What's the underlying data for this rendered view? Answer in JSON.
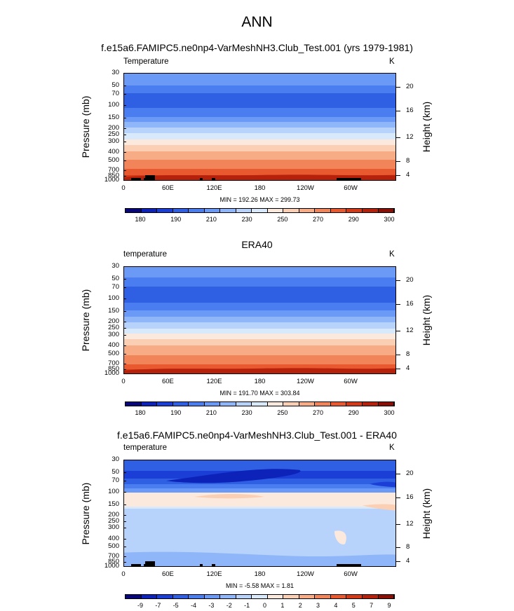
{
  "page_title": "ANN",
  "colorbar_colors": [
    "#08077a",
    "#0d22b8",
    "#1b3fd6",
    "#2f5fe3",
    "#4a7ef0",
    "#6a9af6",
    "#8fb6f9",
    "#b7d3fb",
    "#d8e9fc",
    "#fbe9dd",
    "#fbcfb3",
    "#f8ac85",
    "#f2845a",
    "#e8592f",
    "#d53a18",
    "#b6210c",
    "#8a0f07"
  ],
  "chart_data": [
    {
      "type": "heatmap",
      "panel": "model",
      "title": "f.e15a6.FAMIPC5.ne0np4-VarMeshNH3.Club_Test.001 (yrs 1979-1981)",
      "variable_label": "Temperature",
      "units": "K",
      "ylabel": "Pressure (mb)",
      "ylabel_right": "Height (km)",
      "pressure_levels": [
        "30",
        "50",
        "70",
        "100",
        "150",
        "200",
        "250",
        "300",
        "400",
        "500",
        "700",
        "850",
        "1000"
      ],
      "height_ticks": [
        "20",
        "16",
        "12",
        "8",
        "4"
      ],
      "x_ticks": [
        "0",
        "60E",
        "120E",
        "180",
        "120W",
        "60W"
      ],
      "minmax_text": "MIN = 192.26  MAX = 299.73",
      "min": 192.26,
      "max": 299.73,
      "colorbar_labels": [
        "180",
        "190",
        "210",
        "230",
        "250",
        "270",
        "290",
        "300"
      ]
    },
    {
      "type": "heatmap",
      "panel": "obs",
      "title": "ERA40",
      "variable_label": "temperature",
      "units": "K",
      "ylabel": "Pressure (mb)",
      "ylabel_right": "Height (km)",
      "pressure_levels": [
        "30",
        "50",
        "70",
        "100",
        "150",
        "200",
        "250",
        "300",
        "400",
        "500",
        "700",
        "850",
        "1000"
      ],
      "height_ticks": [
        "20",
        "16",
        "12",
        "8",
        "4"
      ],
      "x_ticks": [
        "0",
        "60E",
        "120E",
        "180",
        "120W",
        "60W"
      ],
      "minmax_text": "MIN = 191.70  MAX = 303.84",
      "min": 191.7,
      "max": 303.84,
      "colorbar_labels": [
        "180",
        "190",
        "210",
        "230",
        "250",
        "270",
        "290",
        "300"
      ]
    },
    {
      "type": "heatmap",
      "panel": "difference",
      "title": "f.e15a6.FAMIPC5.ne0np4-VarMeshNH3.Club_Test.001 - ERA40",
      "variable_label": "temperature",
      "units": "K",
      "ylabel": "Pressure (mb)",
      "ylabel_right": "Height (km)",
      "pressure_levels": [
        "30",
        "50",
        "70",
        "100",
        "150",
        "200",
        "250",
        "300",
        "400",
        "500",
        "700",
        "850",
        "1000"
      ],
      "height_ticks": [
        "20",
        "16",
        "12",
        "8",
        "4"
      ],
      "x_ticks": [
        "0",
        "60E",
        "120E",
        "180",
        "120W",
        "60W"
      ],
      "minmax_text": "MIN = -5.58  MAX =  1.81",
      "min": -5.58,
      "max": 1.81,
      "colorbar_labels": [
        "-9",
        "-7",
        "-5",
        "-4",
        "-3",
        "-2",
        "-1",
        "0",
        "1",
        "2",
        "3",
        "4",
        "5",
        "7",
        "9"
      ]
    }
  ]
}
